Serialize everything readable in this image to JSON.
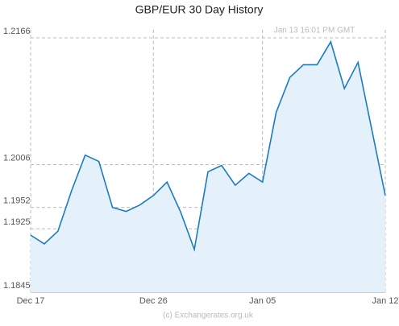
{
  "chart_data": {
    "type": "area",
    "title": "GBP/EUR  30 Day History",
    "annotation": "Jan 13  16:01 PM GMT",
    "footer": "(c) Exchangerates.org.uk",
    "categories": [
      "Dec 17",
      null,
      null,
      null,
      null,
      null,
      null,
      null,
      null,
      "Dec 26",
      null,
      null,
      null,
      null,
      null,
      null,
      null,
      "Jan 05",
      null,
      null,
      null,
      null,
      null,
      null,
      null,
      null,
      "Jan 12"
    ],
    "values": [
      1.1917,
      1.1906,
      1.1922,
      1.1973,
      1.2018,
      1.201,
      1.1952,
      1.1947,
      1.1955,
      1.1967,
      1.1984,
      1.1946,
      1.1899,
      1.1997,
      1.2005,
      1.198,
      1.1995,
      1.1984,
      1.2072,
      1.2116,
      1.2132,
      1.2132,
      1.2161,
      1.2102,
      1.2135,
      1.2051,
      1.1967
    ],
    "color": "#1b7bc4",
    "fill": "#e4f1fa",
    "ylim": [
      1.1845,
      1.2166
    ],
    "yticks": [
      1.1845,
      1.1925,
      1.1952,
      1.2006,
      1.2166
    ],
    "grid": true
  }
}
